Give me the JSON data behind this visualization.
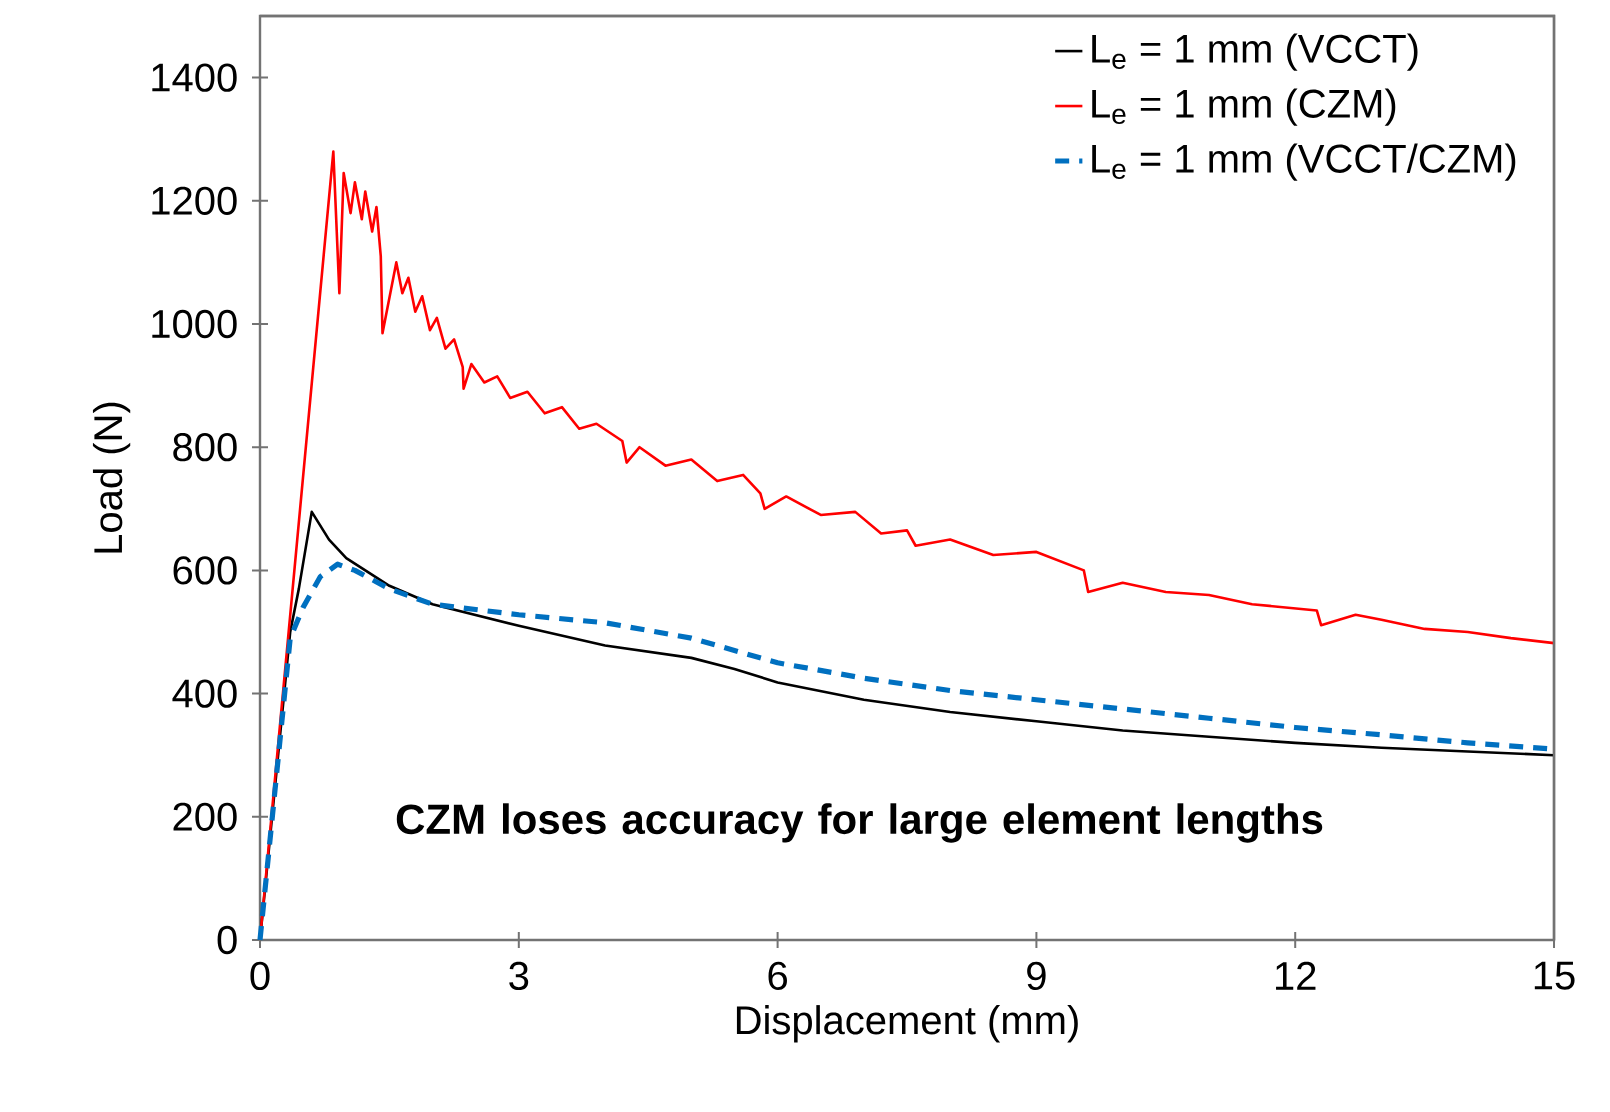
{
  "chart_data": {
    "type": "line",
    "xlabel": "Displacement (mm)",
    "ylabel": "Load (N)",
    "xlim": [
      0,
      15
    ],
    "xticks": [
      0,
      3,
      6,
      9,
      12,
      15
    ],
    "ylim": [
      0,
      1500
    ],
    "yticks": [
      0,
      200,
      400,
      600,
      800,
      1000,
      1200,
      1400
    ],
    "legend": "top right",
    "annotations": [
      "CZM loses accuracy for large element lengths"
    ],
    "series": [
      {
        "name": "L$_{e}$ = 1 mm (VCCT)",
        "color": "#000000",
        "line_style": "solid",
        "x": [
          0,
          0.35,
          0.45,
          0.6,
          0.8,
          1.0,
          1.5,
          2.0,
          3.0,
          4.0,
          5.0,
          5.5,
          6.0,
          7.0,
          8.0,
          9.0,
          10.0,
          11.0,
          12.0,
          13.0,
          14.0,
          15.0
        ],
        "values": [
          0,
          500,
          570,
          695,
          650,
          620,
          575,
          545,
          510,
          478,
          458,
          440,
          418,
          390,
          370,
          355,
          340,
          330,
          320,
          312,
          306,
          300
        ]
      },
      {
        "name": "L$_{e}$ = 1 mm (CZM)",
        "color": "#ff0000",
        "line_style": "solid",
        "x": [
          0,
          0.85,
          0.92,
          0.97,
          1.05,
          1.1,
          1.18,
          1.22,
          1.3,
          1.35,
          1.4,
          1.42,
          1.58,
          1.65,
          1.72,
          1.8,
          1.88,
          1.97,
          2.05,
          2.15,
          2.25,
          2.35,
          2.36,
          2.45,
          2.6,
          2.75,
          2.9,
          3.1,
          3.3,
          3.5,
          3.7,
          3.9,
          4.2,
          4.25,
          4.4,
          4.7,
          5.0,
          5.3,
          5.6,
          5.8,
          5.85,
          6.1,
          6.5,
          6.9,
          7.2,
          7.5,
          7.6,
          8.0,
          8.5,
          9.0,
          9.55,
          9.6,
          10.0,
          10.5,
          11.0,
          11.5,
          12.25,
          12.3,
          12.7,
          13.0,
          13.5,
          14.0,
          14.5,
          15.0
        ],
        "values": [
          0,
          1280,
          1050,
          1245,
          1180,
          1230,
          1170,
          1215,
          1150,
          1190,
          1110,
          985,
          1100,
          1050,
          1075,
          1020,
          1045,
          990,
          1010,
          960,
          975,
          930,
          895,
          935,
          905,
          915,
          880,
          890,
          855,
          865,
          830,
          838,
          810,
          775,
          800,
          770,
          780,
          745,
          755,
          725,
          700,
          720,
          690,
          695,
          660,
          665,
          640,
          650,
          625,
          630,
          600,
          565,
          580,
          565,
          560,
          545,
          535,
          511,
          528,
          520,
          505,
          500,
          490,
          482
        ]
      },
      {
        "name": "L$_{e}$ = 1 mm (VCCT/CZM)",
        "color": "#0070c0",
        "line_style": "dashed",
        "x": [
          0,
          0.35,
          0.5,
          0.7,
          0.9,
          1.1,
          1.5,
          2.0,
          3.0,
          4.0,
          5.0,
          6.0,
          7.0,
          8.0,
          9.0,
          10.0,
          11.0,
          12.0,
          13.0,
          14.0,
          15.0
        ],
        "values": [
          0,
          490,
          540,
          590,
          610,
          600,
          570,
          545,
          528,
          515,
          490,
          450,
          425,
          405,
          390,
          375,
          360,
          345,
          333,
          320,
          310
        ]
      }
    ]
  }
}
